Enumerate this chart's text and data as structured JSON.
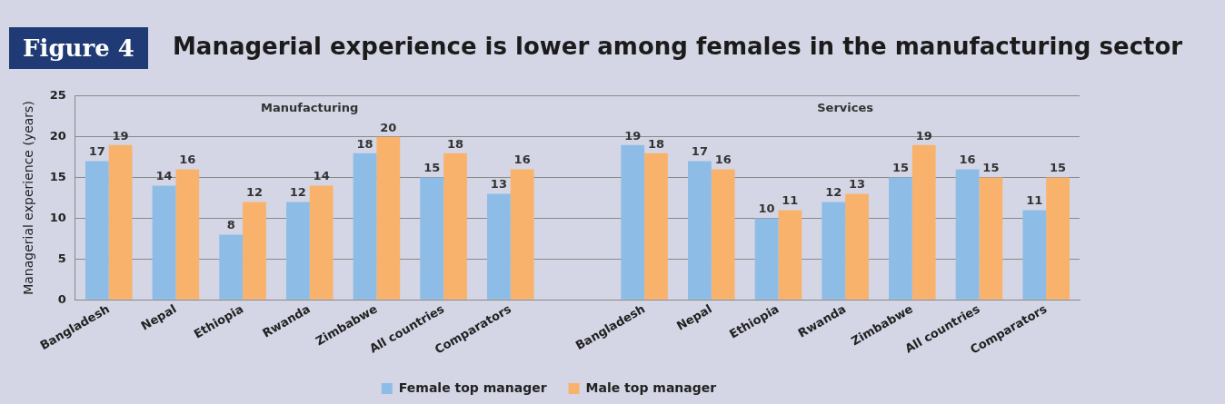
{
  "chart_data": {
    "type": "bar",
    "title": "Managerial experience is lower among females in the manufacturing sector",
    "ylabel": "Managerial experience (years)",
    "annotations": [
      "Figure 4",
      "Manufacturing",
      "Services"
    ],
    "categories": [
      "Bangladesh",
      "Nepal",
      "Ethiopia",
      "Rwanda",
      "Zimbabwe",
      "All countries",
      "Comparators",
      null,
      "Bangladesh",
      "Nepal",
      "Ethiopia",
      "Rwanda",
      "Zimbabwe",
      "All countries",
      "Comparators"
    ],
    "series": [
      {
        "name": "Female top manager",
        "color": "#8dbde6",
        "values": [
          17,
          14,
          8,
          12,
          18,
          15,
          13,
          null,
          19,
          17,
          10,
          12,
          15,
          16,
          11
        ]
      },
      {
        "name": "Male top manager",
        "color": "#f9b26c",
        "values": [
          19,
          16,
          12,
          14,
          20,
          18,
          16,
          null,
          18,
          16,
          11,
          13,
          19,
          15,
          15
        ]
      }
    ],
    "ylim": [
      0,
      25
    ],
    "yticks": [
      0,
      5,
      10,
      15,
      20,
      25
    ],
    "grid": "y",
    "legend": "bottom",
    "data_labels": true
  }
}
